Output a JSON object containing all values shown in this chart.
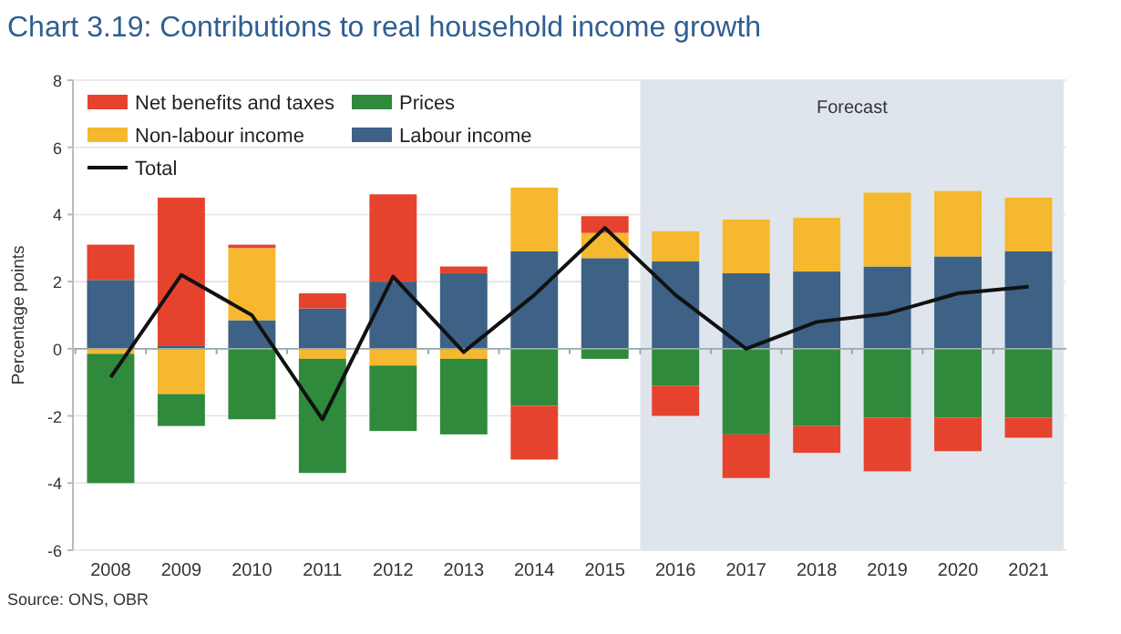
{
  "chart_data": {
    "type": "bar",
    "stacked": true,
    "title": "Chart 3.19: Contributions to real household income growth",
    "ylabel": "Percentage points",
    "annotations": [
      "Source: ONS, OBR"
    ],
    "categories": [
      "2008",
      "2009",
      "2010",
      "2011",
      "2012",
      "2013",
      "2014",
      "2015",
      "2016",
      "2017",
      "2018",
      "2019",
      "2020",
      "2021"
    ],
    "series": [
      {
        "name": "Labour income",
        "color": "#3d6285",
        "values": [
          2.05,
          0.1,
          0.85,
          1.2,
          2.0,
          2.25,
          2.9,
          2.7,
          2.6,
          2.25,
          2.3,
          2.45,
          2.75,
          2.9
        ]
      },
      {
        "name": "Non-labour income",
        "color": "#f5b82e",
        "values": [
          -0.15,
          -1.35,
          2.15,
          -0.3,
          -0.5,
          -0.3,
          1.9,
          0.75,
          0.9,
          1.6,
          1.6,
          2.2,
          1.95,
          1.6
        ]
      },
      {
        "name": "Prices",
        "color": "#2f8a3c",
        "values": [
          -3.85,
          -0.95,
          -2.1,
          -3.4,
          -1.95,
          -2.25,
          -1.7,
          -0.3,
          -1.1,
          -2.55,
          -2.3,
          -2.05,
          -2.05,
          -2.05
        ]
      },
      {
        "name": "Net benefits and taxes",
        "color": "#e5432d",
        "values": [
          1.05,
          4.4,
          0.1,
          0.45,
          2.6,
          0.2,
          -1.6,
          0.5,
          -0.9,
          -1.3,
          -0.8,
          -1.6,
          -1.0,
          -0.6
        ]
      },
      {
        "name": "Total",
        "type": "line",
        "color": "#111111",
        "values": [
          -0.85,
          2.2,
          1.0,
          -2.1,
          2.15,
          -0.1,
          1.6,
          3.6,
          1.6,
          0.0,
          0.8,
          1.05,
          1.65,
          1.85
        ]
      }
    ],
    "ylim": [
      -6,
      8
    ],
    "yticks": [
      -6,
      -4,
      -2,
      0,
      2,
      4,
      6,
      8
    ],
    "grid": "y",
    "legend": "top left",
    "bands": [
      {
        "axis": "x",
        "from": "2016",
        "to": "2021",
        "label": "Forecast",
        "color": "#dfe5ec"
      }
    ]
  }
}
